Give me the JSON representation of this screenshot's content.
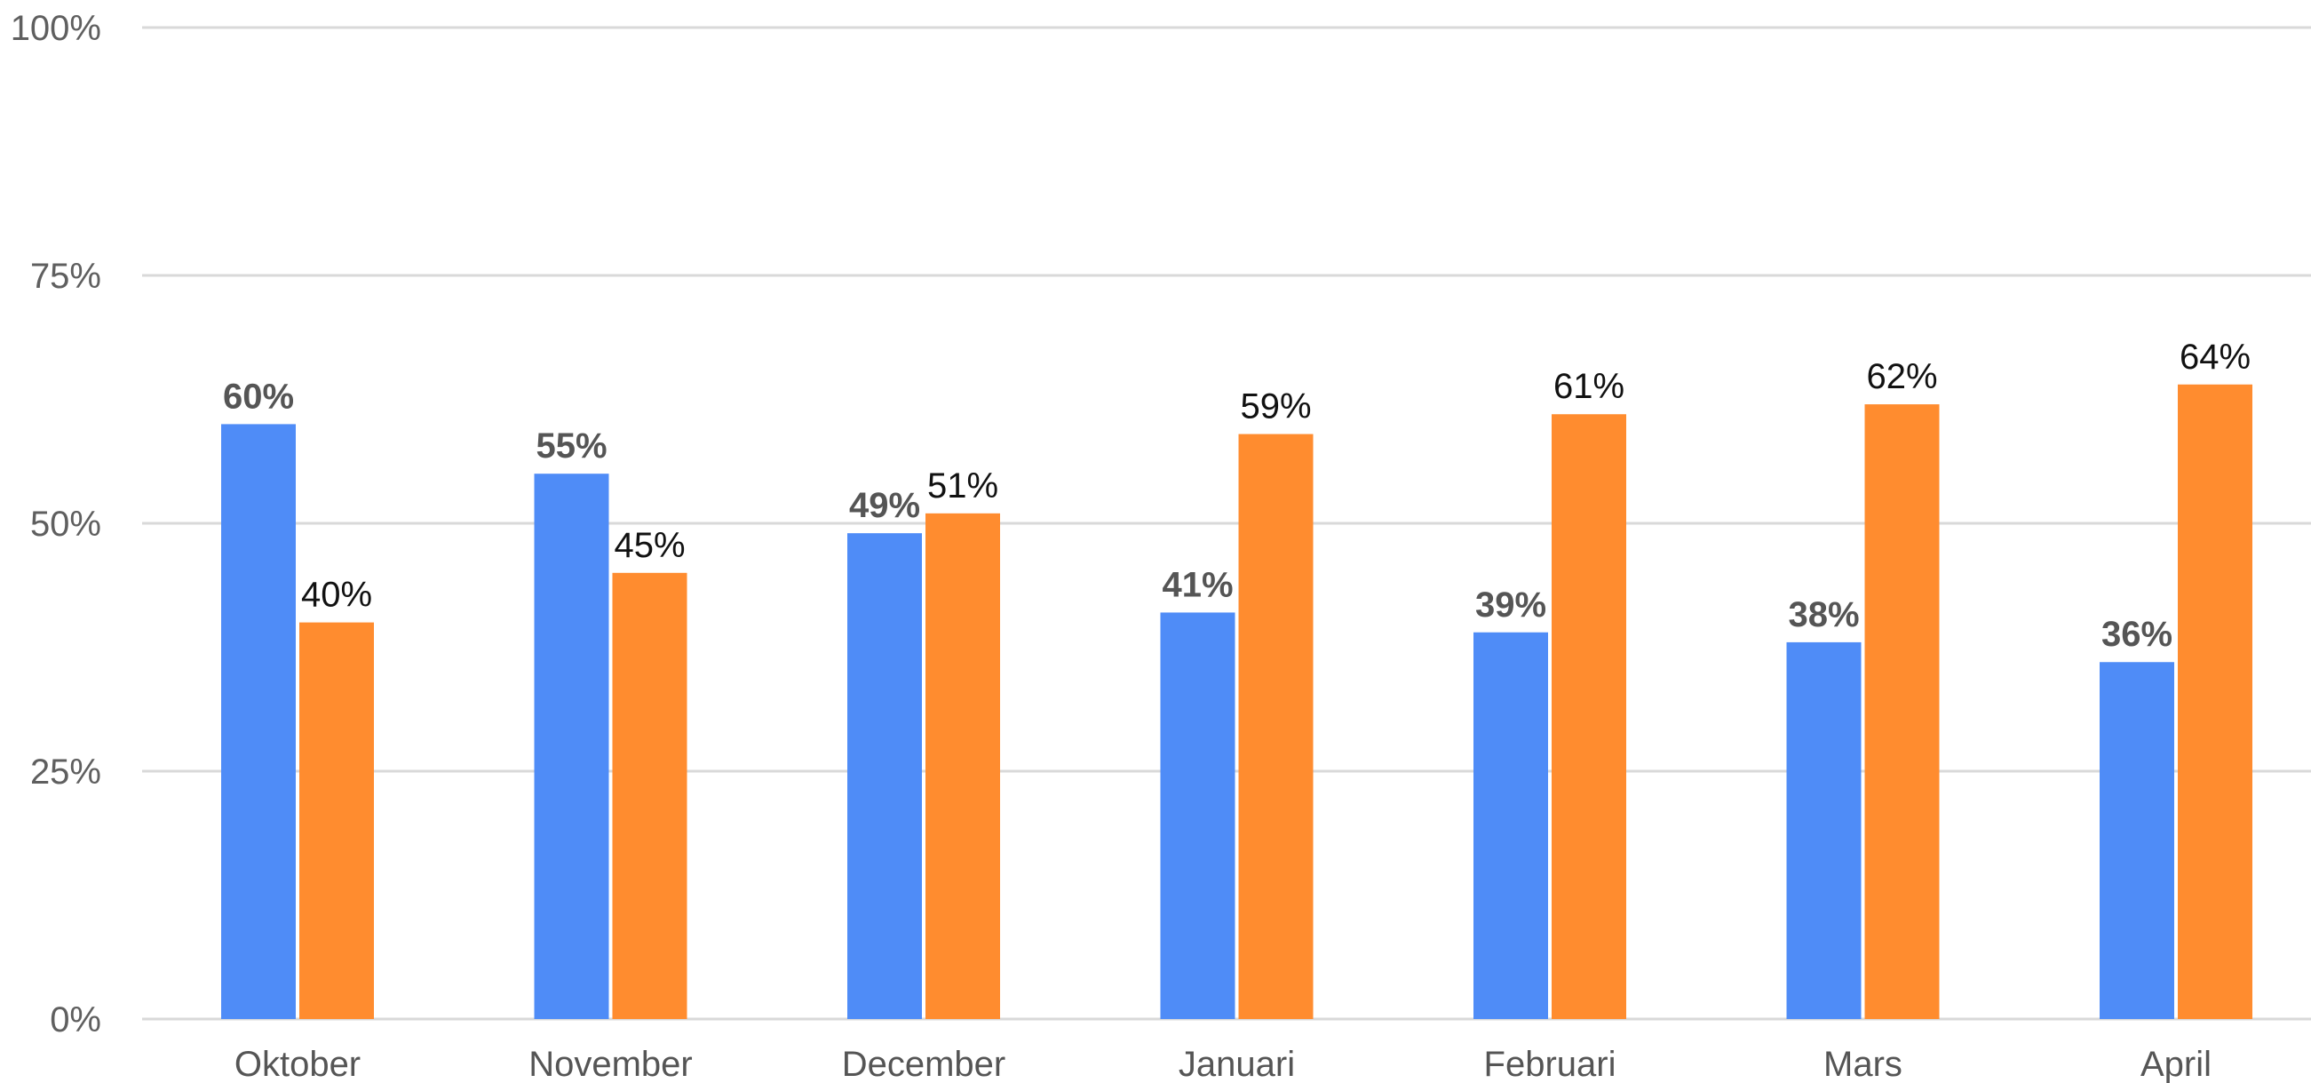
{
  "chart_data": {
    "type": "bar",
    "categories": [
      "Oktober",
      "November",
      "December",
      "Januari",
      "Februari",
      "Mars",
      "April"
    ],
    "series": [
      {
        "values": [
          60,
          55,
          49,
          41,
          39,
          38,
          36
        ],
        "color": "#4f8cf7"
      },
      {
        "values": [
          40,
          45,
          51,
          59,
          61,
          62,
          64
        ],
        "color": "#ff8c2f"
      }
    ],
    "y_ticks": [
      "0%",
      "25%",
      "50%",
      "75%",
      "100%"
    ],
    "ylim": [
      0,
      100
    ],
    "value_suffix": "%",
    "grid": true,
    "legend": "none"
  }
}
